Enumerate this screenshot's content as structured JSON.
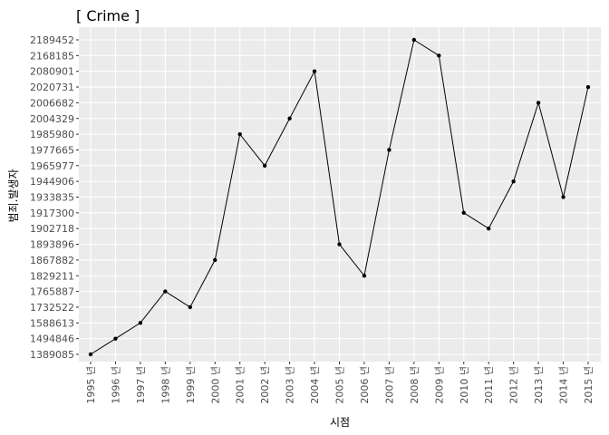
{
  "chart_data": {
    "type": "line",
    "title": "[ Crime ]",
    "xlabel": "시점",
    "ylabel": "범죄.발생자",
    "categories": [
      "1995 년",
      "1996 년",
      "1997 년",
      "1998 년",
      "1999 년",
      "2000 년",
      "2001 년",
      "2002 년",
      "2003 년",
      "2004 년",
      "2005 년",
      "2006 년",
      "2007 년",
      "2008 년",
      "2009 년",
      "2010 년",
      "2011 년",
      "2012 년",
      "2013 년",
      "2014 년",
      "2015 년"
    ],
    "values": [
      1389085,
      1494846,
      1588613,
      1765887,
      1732522,
      1867882,
      1985980,
      1965977,
      2004329,
      2080901,
      1893896,
      1829211,
      1977665,
      2189452,
      2168185,
      1917300,
      1902718,
      1944906,
      2006682,
      1933835,
      2020731
    ],
    "y_ticks": [
      "1389085",
      "1494846",
      "1588613",
      "1732522",
      "1765887",
      "1829211",
      "1867882",
      "1893896",
      "1902718",
      "1917300",
      "1933835",
      "1944906",
      "1965977",
      "1977665",
      "1985980",
      "2004329",
      "2006682",
      "2020731",
      "2080901",
      "2168185",
      "2189452"
    ],
    "y_axis_scale": "discrete",
    "grid": true,
    "colors": {
      "panel": "#ebebeb",
      "grid": "#ffffff",
      "line": "#000000",
      "point": "#000000",
      "tick_text": "#4d4d4d",
      "tick_mark": "#333333"
    }
  }
}
